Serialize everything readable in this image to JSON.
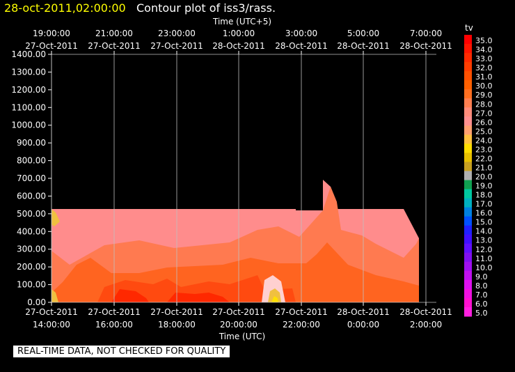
{
  "header": {
    "date": "28-oct-2011,02:00:00",
    "title": "Contour plot of iss3/rass."
  },
  "footer": {
    "note": "REAL-TIME DATA, NOT CHECKED FOR QUALITY"
  },
  "chart_data": {
    "type": "heatmap",
    "top_axis_label": "Time (UTC+5)",
    "bottom_axis_label": "Time (UTC)",
    "colorbar_label": "tv",
    "ylim": [
      0,
      1400
    ],
    "y_ticks": [
      "0.00",
      "100.00",
      "200.00",
      "300.00",
      "400.00",
      "500.00",
      "600.00",
      "700.00",
      "800.00",
      "900.00",
      "1000.00",
      "1100.00",
      "1200.00",
      "1300.00",
      "1400.00"
    ],
    "x_ticks_bottom": [
      {
        "date": "27-Oct-2011",
        "time": "14:00:00"
      },
      {
        "date": "27-Oct-2011",
        "time": "16:00:00"
      },
      {
        "date": "27-Oct-2011",
        "time": "18:00:00"
      },
      {
        "date": "27-Oct-2011",
        "time": "20:00:00"
      },
      {
        "date": "27-Oct-2011",
        "time": "22:00:00"
      },
      {
        "date": "28-Oct-2011",
        "time": "0:00:00"
      },
      {
        "date": "28-Oct-2011",
        "time": "2:00:00"
      }
    ],
    "x_ticks_top": [
      {
        "time": "19:00:00",
        "date": "27-Oct-2011"
      },
      {
        "time": "21:00:00",
        "date": "27-Oct-2011"
      },
      {
        "time": "23:00:00",
        "date": "27-Oct-2011"
      },
      {
        "time": "1:00:00",
        "date": "28-Oct-2011"
      },
      {
        "time": "3:00:00",
        "date": "28-Oct-2011"
      },
      {
        "time": "5:00:00",
        "date": "28-Oct-2011"
      },
      {
        "time": "7:00:00",
        "date": "28-Oct-2011"
      }
    ],
    "grid": true,
    "colorbar": [
      {
        "label": "35.0",
        "color": "#ff0000"
      },
      {
        "label": "34.0",
        "color": "#ff1500"
      },
      {
        "label": "33.0",
        "color": "#ff2a00"
      },
      {
        "label": "32.0",
        "color": "#ff3d00"
      },
      {
        "label": "31.0",
        "color": "#ff5000"
      },
      {
        "label": "30.0",
        "color": "#ff6000"
      },
      {
        "label": "29.0",
        "color": "#ff6f20"
      },
      {
        "label": "28.0",
        "color": "#ff7f50"
      },
      {
        "label": "27.0",
        "color": "#ff8c7a"
      },
      {
        "label": "26.0",
        "color": "#ff9090"
      },
      {
        "label": "25.0",
        "color": "#ffa070"
      },
      {
        "label": "24.0",
        "color": "#ffc040"
      },
      {
        "label": "23.0",
        "color": "#ffdd00"
      },
      {
        "label": "22.0",
        "color": "#e8c000"
      },
      {
        "label": "21.0",
        "color": "#c8a020"
      },
      {
        "label": "20.0",
        "color": "#b0b0b0"
      },
      {
        "label": "19.0",
        "color": "#10a050"
      },
      {
        "label": "18.0",
        "color": "#00c8a0"
      },
      {
        "label": "17.0",
        "color": "#00b0c0"
      },
      {
        "label": "16.0",
        "color": "#0080e0"
      },
      {
        "label": "15.0",
        "color": "#0050ff"
      },
      {
        "label": "14.0",
        "color": "#2020ff"
      },
      {
        "label": "13.0",
        "color": "#4010ff"
      },
      {
        "label": "12.0",
        "color": "#6010ff"
      },
      {
        "label": "11.0",
        "color": "#8010f0"
      },
      {
        "label": "10.0",
        "color": "#a010f0"
      },
      {
        "label": "9.0",
        "color": "#c010f0"
      },
      {
        "label": "8.0",
        "color": "#e010f0"
      },
      {
        "label": "7.0",
        "color": "#f010e0"
      },
      {
        "label": "6.0",
        "color": "#ff10d0"
      },
      {
        "label": "5.0",
        "color": "#ff20e0"
      }
    ],
    "field_colors": {
      "pink": "#ff8c8c",
      "salmon": "#ff7a50",
      "orange": "#ff6420",
      "deep_orange": "#ff4a10",
      "red": "#ff2800",
      "yellow_tan": "#f0c040",
      "pale": "#ffd0d0",
      "yellow": "#ffe000"
    }
  }
}
